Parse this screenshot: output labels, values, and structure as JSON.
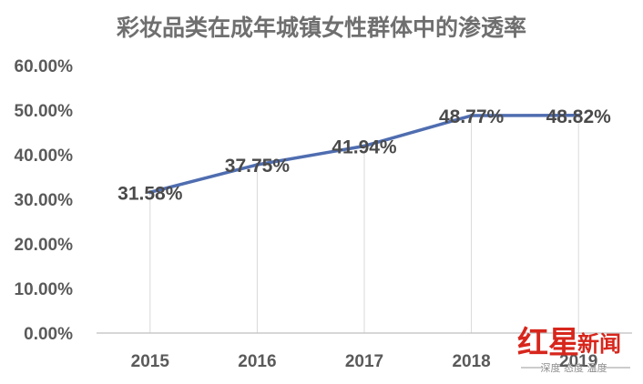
{
  "chart_data": {
    "type": "line",
    "title": "彩妆品类在成年城镇女性群体中的渗透率",
    "categories": [
      "2015",
      "2016",
      "2017",
      "2018",
      "2019"
    ],
    "series": [
      {
        "values": [
          31.58,
          37.75,
          41.94,
          48.77,
          48.82
        ],
        "data_labels": [
          "31.58%",
          "37.75%",
          "41.94%",
          "48.77%",
          "48.82%"
        ]
      }
    ],
    "y_ticks": [
      "0.00%",
      "10.00%",
      "20.00%",
      "30.00%",
      "40.00%",
      "50.00%",
      "60.00%"
    ],
    "ylim": [
      0,
      60
    ],
    "y_step": 10,
    "grid": "vertical lines at categories",
    "legend": "none",
    "colors": {
      "line": "#4f6db0",
      "grid": "#d9d9d9",
      "axis": "#bfbfbf",
      "title": "#6f6f6f",
      "tick": "#5a5a5a",
      "label": "#4a4a4a"
    }
  },
  "watermark": {
    "main": "红星",
    "sub": "新闻",
    "tagline": "深度 态度 温度"
  }
}
